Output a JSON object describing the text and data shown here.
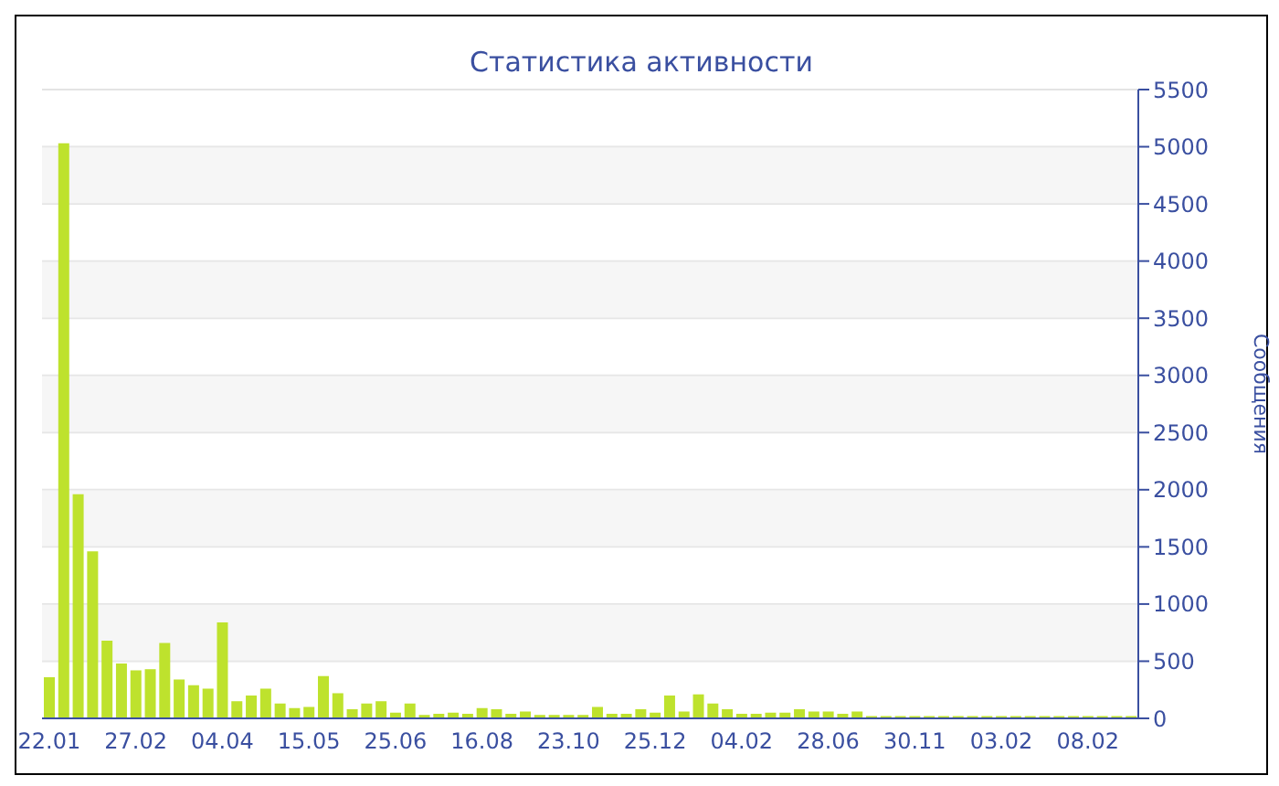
{
  "chart_data": {
    "type": "bar",
    "title": "Статистика активности",
    "ylabel": "Сообщения",
    "categories": [
      "22.01",
      null,
      null,
      null,
      null,
      null,
      "27.02",
      null,
      null,
      null,
      null,
      null,
      "04.04",
      null,
      null,
      null,
      null,
      null,
      "15.05",
      null,
      null,
      null,
      null,
      null,
      "25.06",
      null,
      null,
      null,
      null,
      null,
      "16.08",
      null,
      null,
      null,
      null,
      null,
      "23.10",
      null,
      null,
      null,
      null,
      null,
      "25.12",
      null,
      null,
      null,
      null,
      null,
      "04.02",
      null,
      null,
      null,
      null,
      null,
      "28.06",
      null,
      null,
      null,
      null,
      null,
      "30.11",
      null,
      null,
      null,
      null,
      null,
      "03.02",
      null,
      null,
      null,
      null,
      null,
      "08.02",
      null,
      null,
      null
    ],
    "values": [
      360,
      5030,
      1960,
      1460,
      680,
      480,
      420,
      430,
      660,
      340,
      290,
      260,
      840,
      150,
      200,
      260,
      130,
      90,
      100,
      370,
      220,
      80,
      130,
      150,
      50,
      130,
      30,
      40,
      50,
      40,
      90,
      80,
      40,
      60,
      30,
      30,
      30,
      30,
      100,
      40,
      40,
      80,
      50,
      200,
      60,
      210,
      130,
      80,
      40,
      40,
      50,
      50,
      80,
      60,
      60,
      40,
      60,
      20,
      20,
      20,
      20,
      20,
      20,
      20,
      20,
      20,
      20,
      20,
      20,
      20,
      20,
      20,
      20,
      20,
      20,
      20
    ],
    "color": "#bee22d",
    "ylim": [
      0,
      5500
    ],
    "yticks": [
      0,
      500,
      1000,
      1500,
      2000,
      2500,
      3000,
      3500,
      4000,
      4500,
      5000,
      5500
    ],
    "grid": "y"
  }
}
